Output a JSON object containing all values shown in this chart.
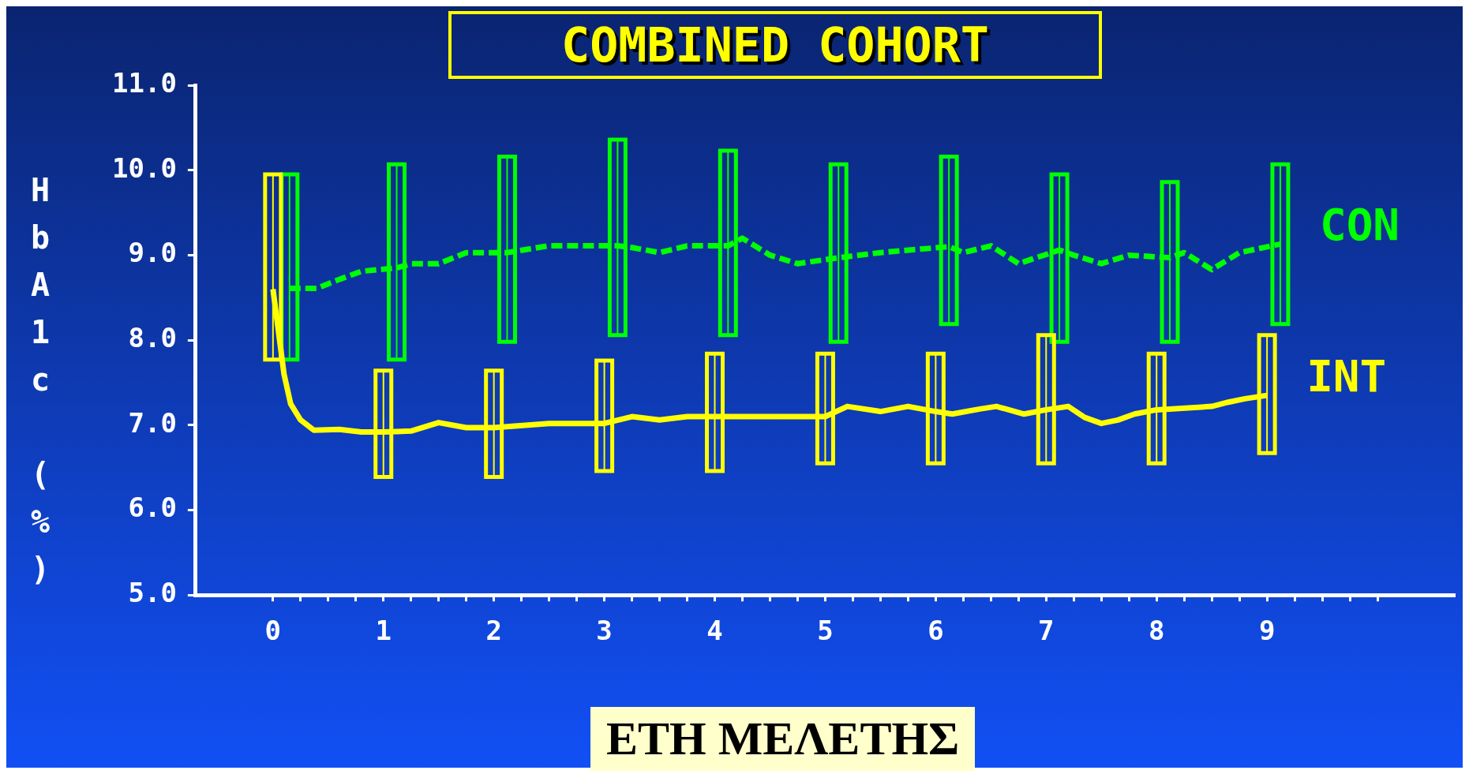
{
  "chart_data": {
    "type": "line",
    "title": "COMBINED COHORT",
    "xlabel": "ΕΤΗ ΜΕΛΕΤΗΣ",
    "ylabel": "HbA1c (%)",
    "xlim": [
      -0.7,
      10.7
    ],
    "xticks": [
      {
        "value": 0,
        "label": "0"
      },
      {
        "value": 0.25,
        "label": null
      },
      {
        "value": 0.5,
        "label": null
      },
      {
        "value": 0.75,
        "label": null
      },
      {
        "value": 1,
        "label": "1"
      },
      {
        "value": 1.25,
        "label": null
      },
      {
        "value": 1.5,
        "label": null
      },
      {
        "value": 1.75,
        "label": null
      },
      {
        "value": 2,
        "label": "2"
      },
      {
        "value": 2.25,
        "label": null
      },
      {
        "value": 2.5,
        "label": null
      },
      {
        "value": 2.75,
        "label": null
      },
      {
        "value": 3,
        "label": "3"
      },
      {
        "value": 3.25,
        "label": null
      },
      {
        "value": 3.5,
        "label": null
      },
      {
        "value": 3.75,
        "label": null
      },
      {
        "value": 4,
        "label": "4"
      },
      {
        "value": 4.25,
        "label": null
      },
      {
        "value": 4.5,
        "label": null
      },
      {
        "value": 4.75,
        "label": null
      },
      {
        "value": 5,
        "label": "5"
      },
      {
        "value": 5.25,
        "label": null
      },
      {
        "value": 5.5,
        "label": null
      },
      {
        "value": 5.75,
        "label": null
      },
      {
        "value": 6,
        "label": "6"
      },
      {
        "value": 6.25,
        "label": null
      },
      {
        "value": 6.5,
        "label": null
      },
      {
        "value": 6.75,
        "label": null
      },
      {
        "value": 7,
        "label": "7"
      },
      {
        "value": 7.25,
        "label": null
      },
      {
        "value": 7.5,
        "label": null
      },
      {
        "value": 7.75,
        "label": null
      },
      {
        "value": 8,
        "label": "8"
      },
      {
        "value": 8.25,
        "label": null
      },
      {
        "value": 8.5,
        "label": null
      },
      {
        "value": 8.75,
        "label": null
      },
      {
        "value": 9,
        "label": "9"
      },
      {
        "value": 9.25,
        "label": null
      },
      {
        "value": 9.5,
        "label": null
      },
      {
        "value": 9.75,
        "label": null
      },
      {
        "value": 10,
        "label": null
      }
    ],
    "ylim": [
      5,
      11
    ],
    "yticks": [
      {
        "value": 5,
        "label": "5.0"
      },
      {
        "value": 6,
        "label": "6.0"
      },
      {
        "value": 7,
        "label": "7.0"
      },
      {
        "value": 8,
        "label": "8.0"
      },
      {
        "value": 9,
        "label": "9.0"
      },
      {
        "value": 10,
        "label": "10.0"
      },
      {
        "value": 11,
        "label": "11.0"
      }
    ],
    "grid": false,
    "legend": false,
    "marker": "none",
    "series": [
      {
        "name": "CON",
        "color": "#00ff00",
        "line_style": "dashed",
        "x": [
          0.15,
          0.4,
          0.55,
          0.8,
          1.12,
          1.25,
          1.5,
          1.75,
          2.12,
          2.5,
          3.12,
          3.25,
          3.5,
          3.75,
          4.12,
          4.25,
          4.5,
          4.75,
          5.12,
          5.5,
          6.12,
          6.25,
          6.5,
          6.75,
          7.12,
          7.25,
          7.5,
          7.75,
          8.12,
          8.25,
          8.5,
          8.75,
          9.12
        ],
        "values": [
          8.61,
          8.61,
          8.69,
          8.81,
          8.85,
          8.9,
          8.9,
          9.03,
          9.03,
          9.11,
          9.11,
          9.09,
          9.03,
          9.11,
          9.11,
          9.2,
          9.0,
          8.9,
          8.97,
          9.03,
          9.1,
          9.03,
          9.11,
          8.9,
          9.06,
          9.0,
          8.9,
          9.0,
          8.97,
          9.03,
          8.83,
          9.03,
          9.13
        ],
        "errors": [
          [
            7.77,
            9.95
          ],
          null,
          null,
          null,
          [
            7.77,
            10.07
          ],
          null,
          null,
          null,
          [
            7.98,
            10.16
          ],
          null,
          [
            8.06,
            10.36
          ],
          null,
          null,
          null,
          [
            8.06,
            10.23
          ],
          null,
          null,
          null,
          [
            7.98,
            10.07
          ],
          null,
          [
            8.19,
            10.16
          ],
          null,
          null,
          null,
          [
            7.98,
            9.95
          ],
          null,
          null,
          null,
          [
            7.98,
            9.86
          ],
          null,
          null,
          null,
          [
            8.19,
            10.07
          ]
        ]
      },
      {
        "name": "INT",
        "color": "#ffff00",
        "line_style": "solid",
        "x": [
          0,
          0.1,
          0.16,
          0.25,
          0.37,
          0.6,
          0.8,
          1,
          1.25,
          1.5,
          1.75,
          2,
          2.5,
          3,
          3.25,
          3.5,
          3.75,
          4,
          4.5,
          5,
          5.2,
          5.5,
          5.75,
          6,
          6.15,
          6.4,
          6.55,
          6.8,
          7,
          7.2,
          7.35,
          7.5,
          7.65,
          7.8,
          8,
          8.5,
          8.65,
          8.8,
          9
        ],
        "values": [
          8.6,
          7.6,
          7.25,
          7.06,
          6.94,
          6.95,
          6.92,
          6.92,
          6.93,
          7.03,
          6.97,
          6.97,
          7.02,
          7.02,
          7.1,
          7.06,
          7.1,
          7.1,
          7.1,
          7.1,
          7.22,
          7.16,
          7.22,
          7.16,
          7.13,
          7.19,
          7.22,
          7.13,
          7.18,
          7.22,
          7.09,
          7.02,
          7.06,
          7.13,
          7.18,
          7.22,
          7.27,
          7.31,
          7.35
        ],
        "errors": [
          [
            7.77,
            9.95
          ],
          null,
          null,
          null,
          null,
          null,
          null,
          [
            6.39,
            7.64
          ],
          null,
          null,
          null,
          [
            6.39,
            7.64
          ],
          null,
          [
            6.46,
            7.76
          ],
          null,
          null,
          null,
          [
            6.46,
            7.84
          ],
          null,
          [
            6.55,
            7.84
          ],
          null,
          null,
          null,
          [
            6.55,
            7.84
          ],
          null,
          null,
          null,
          null,
          [
            6.55,
            8.06
          ],
          null,
          null,
          null,
          null,
          null,
          [
            6.55,
            7.84
          ],
          null,
          null,
          null,
          [
            6.67,
            8.06
          ]
        ]
      }
    ]
  }
}
